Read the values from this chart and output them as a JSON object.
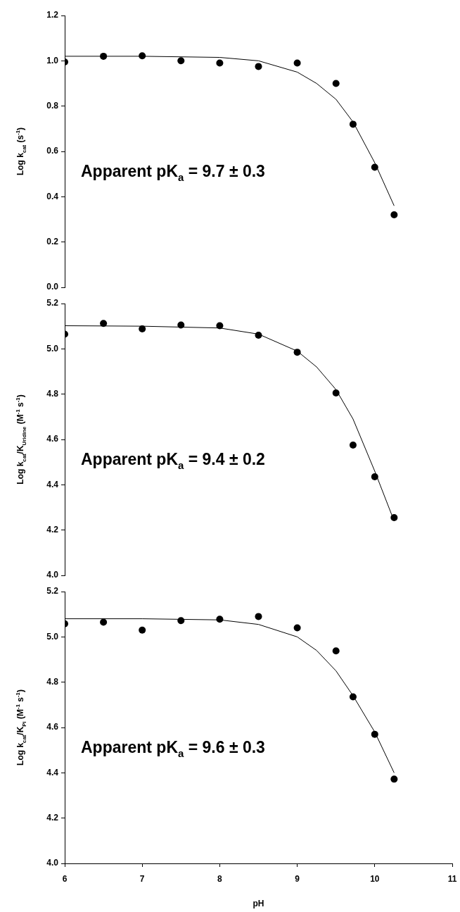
{
  "chart_data": [
    {
      "type": "scatter",
      "ylabel": "Log k$_{cat}$ (s$^{-1}$)",
      "annotations": [
        "Apparent pK$_{a}$ = 9.7 ± 0.3"
      ],
      "x": [
        6,
        6.5,
        7,
        7.5,
        8,
        8.5,
        9,
        9.5,
        9.72,
        10,
        10.25
      ],
      "xlim": [
        6,
        11
      ],
      "xticks": [
        6,
        7,
        8,
        9,
        10,
        11
      ],
      "ylim": [
        0,
        1.2
      ],
      "yticks": [
        {
          "value": 0,
          "label": "0.0"
        },
        0.2,
        0.4,
        0.6,
        0.8,
        {
          "value": 1,
          "label": "1.0"
        },
        1.2
      ],
      "tick_labels": "y",
      "series": [
        {
          "type": "scatter",
          "color": "#000000",
          "marker": "circle",
          "values": [
            0.995,
            1.02,
            1.022,
            1.0,
            0.99,
            0.975,
            0.99,
            0.9,
            0.72,
            0.53,
            0.32
          ]
        },
        {
          "type": "line",
          "color": "#000000",
          "marker": "none",
          "line_style": "solid",
          "x": [
            6,
            7,
            8,
            8.5,
            9,
            9.25,
            9.5,
            9.72,
            10,
            10.25
          ],
          "values": [
            1.02,
            1.02,
            1.015,
            1.0,
            0.95,
            0.9,
            0.83,
            0.73,
            0.55,
            0.36
          ]
        }
      ]
    },
    {
      "type": "scatter",
      "ylabel": "Log k$_{cat}$/K$_{Uridine}$ (M$^{-1}$ s$^{-1}$)",
      "annotations": [
        "Apparent pK$_{a}$ = 9.4 ± 0.2"
      ],
      "x": [
        6,
        6.5,
        7,
        7.5,
        8,
        8.5,
        9,
        9.5,
        9.72,
        10,
        10.25
      ],
      "xlim": [
        6,
        11
      ],
      "xticks": [
        6,
        7,
        8,
        9,
        10,
        11
      ],
      "ylim": [
        4.0,
        5.2
      ],
      "yticks": [
        {
          "value": 4,
          "label": "4.0"
        },
        4.2,
        4.4,
        4.6,
        4.8,
        {
          "value": 5,
          "label": "5.0"
        },
        5.2
      ],
      "tick_labels": "y",
      "series": [
        {
          "type": "scatter",
          "color": "#000000",
          "marker": "circle",
          "values": [
            5.065,
            5.112,
            5.088,
            5.105,
            5.102,
            5.06,
            4.985,
            4.805,
            4.575,
            4.435,
            4.255
          ]
        },
        {
          "type": "line",
          "color": "#000000",
          "marker": "none",
          "line_style": "solid",
          "x": [
            6,
            7,
            8,
            8.5,
            9,
            9.25,
            9.5,
            9.72,
            10,
            10.25
          ],
          "values": [
            5.102,
            5.1,
            5.092,
            5.065,
            4.99,
            4.92,
            4.82,
            4.69,
            4.46,
            4.24
          ]
        }
      ]
    },
    {
      "type": "scatter",
      "xlabel": "pH",
      "ylabel": "Log k$_{cat}$/K$_{Pi}$ (M$^{-1}$ s$^{-1}$)",
      "annotations": [
        "Apparent pK$_{a}$ = 9.6 ± 0.3"
      ],
      "x": [
        6,
        6.5,
        7,
        7.5,
        8,
        8.5,
        9,
        9.5,
        9.72,
        10,
        10.25
      ],
      "xlim": [
        6,
        11
      ],
      "xticks": [
        6,
        7,
        8,
        9,
        10,
        11
      ],
      "ylim": [
        4.0,
        5.2
      ],
      "yticks": [
        {
          "value": 4,
          "label": "4.0"
        },
        4.2,
        4.4,
        4.6,
        4.8,
        {
          "value": 5,
          "label": "5.0"
        },
        5.2
      ],
      "series": [
        {
          "type": "scatter",
          "color": "#000000",
          "marker": "circle",
          "values": [
            5.058,
            5.065,
            5.03,
            5.072,
            5.078,
            5.09,
            5.04,
            4.938,
            4.735,
            4.57,
            4.372
          ]
        },
        {
          "type": "line",
          "color": "#000000",
          "marker": "none",
          "line_style": "solid",
          "x": [
            6,
            7,
            8,
            8.5,
            9,
            9.25,
            9.5,
            9.72,
            10,
            10.25
          ],
          "values": [
            5.08,
            5.08,
            5.075,
            5.055,
            5.0,
            4.94,
            4.85,
            4.74,
            4.58,
            4.4
          ]
        }
      ]
    }
  ]
}
